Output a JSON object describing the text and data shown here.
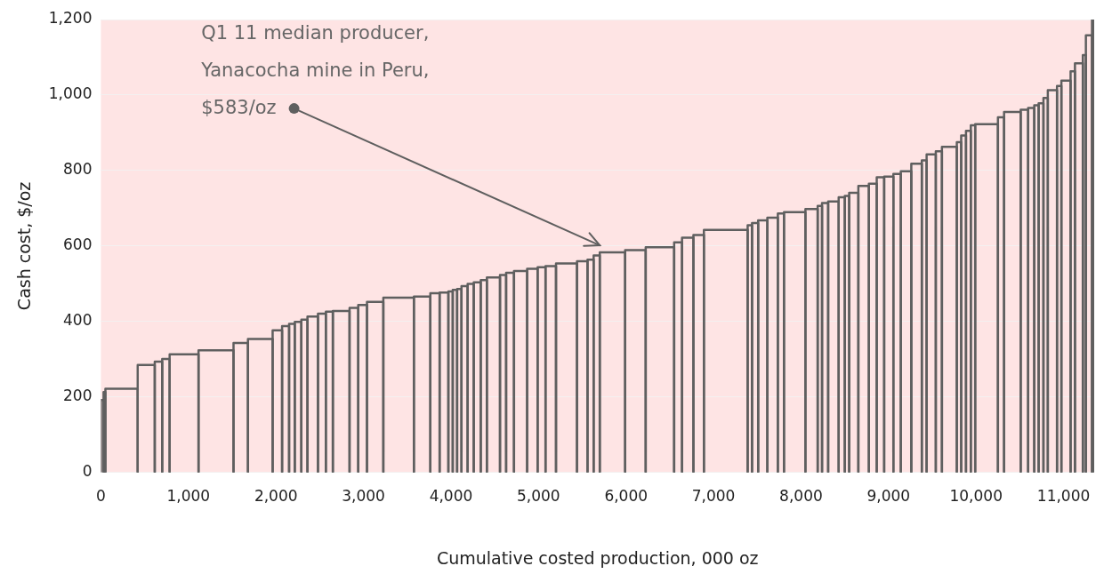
{
  "chart_data": {
    "type": "histogram",
    "xlabel": "Cumulative costed production, 000 oz",
    "ylabel": "Cash cost, $/oz",
    "color": "#5f5f5f",
    "bins": [
      0,
      30,
      51,
      420,
      615,
      700,
      785,
      1115,
      1515,
      1680,
      1962,
      2070,
      2150,
      2215,
      2290,
      2360,
      2480,
      2570,
      2650,
      2841,
      2940,
      3040,
      3227,
      3576,
      3764,
      3870,
      3970,
      4020,
      4070,
      4120,
      4190,
      4260,
      4340,
      4410,
      4560,
      4630,
      4720,
      4870,
      4990,
      5080,
      5200,
      5440,
      5560,
      5630,
      5700,
      5990,
      6225,
      6550,
      6640,
      6770,
      6890,
      7390,
      7440,
      7510,
      7615,
      7735,
      7805,
      8050,
      8190,
      8240,
      8310,
      8430,
      8500,
      8550,
      8655,
      8775,
      8865,
      8950,
      9055,
      9140,
      9260,
      9380,
      9435,
      9540,
      9610,
      9780,
      9830,
      9885,
      9940,
      9990,
      10250,
      10320,
      10510,
      10595,
      10665,
      10715,
      10770,
      10820,
      10925,
      10975,
      11080,
      11130,
      11220,
      11255,
      11325,
      11350
    ],
    "values": [
      192,
      213,
      222,
      285,
      294,
      301,
      313,
      324,
      343,
      354,
      377,
      388,
      394,
      399,
      405,
      413,
      421,
      426,
      428,
      436,
      444,
      452,
      463,
      466,
      475,
      477,
      480,
      484,
      486,
      494,
      500,
      504,
      510,
      517,
      523,
      529,
      534,
      540,
      544,
      547,
      554,
      560,
      564,
      575,
      583,
      589,
      597,
      610,
      622,
      629,
      643,
      655,
      661,
      668,
      675,
      686,
      690,
      698,
      706,
      714,
      718,
      729,
      733,
      741,
      759,
      765,
      782,
      784,
      791,
      798,
      818,
      827,
      843,
      851,
      863,
      875,
      893,
      905,
      920,
      923,
      941,
      955,
      961,
      966,
      973,
      978,
      992,
      1013,
      1024,
      1038,
      1063,
      1084,
      1106,
      1158,
      1200
    ],
    "xlim": [
      0,
      11350
    ],
    "xticks": [
      0,
      {
        "value": 1000,
        "label": "1,000"
      },
      {
        "value": 2000,
        "label": "2,000"
      },
      {
        "value": 3000,
        "label": "3,000"
      },
      {
        "value": 4000,
        "label": "4,000"
      },
      {
        "value": 5000,
        "label": "5,000"
      },
      {
        "value": 6000,
        "label": "6,000"
      },
      {
        "value": 7000,
        "label": "7,000"
      },
      {
        "value": 8000,
        "label": "8,000"
      },
      {
        "value": 9000,
        "label": "9,000"
      },
      {
        "value": 10000,
        "label": "10,000"
      },
      {
        "value": 11000,
        "label": "11,000"
      }
    ],
    "ylim": [
      0,
      1200
    ],
    "yticks": [
      0,
      200,
      400,
      600,
      800,
      {
        "value": 1000,
        "label": "1,000"
      },
      {
        "value": 1200,
        "label": "1,200"
      }
    ],
    "grid": "y",
    "legend": false,
    "annotations": [
      {
        "text": "Q1 11 median producer, Yanacocha mine in Peru, $583/oz",
        "x": 5700,
        "y": 583
      }
    ]
  }
}
